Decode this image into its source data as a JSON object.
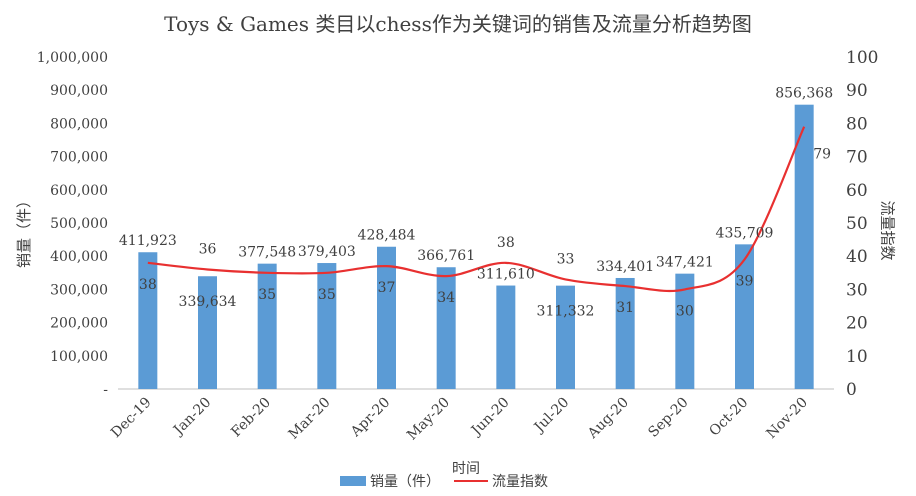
{
  "chart_data": {
    "type": "bar",
    "title": "Toys & Games 类目以chess作为关键词的销售及流量分析趋势图",
    "xlabel": "时间",
    "ylabel": "销量（件）",
    "y2label": "流量指数",
    "categories": [
      "Dec-19",
      "Jan-20",
      "Feb-20",
      "Mar-20",
      "Apr-20",
      "May-20",
      "Jun-20",
      "Jul-20",
      "Aug-20",
      "Sep-20",
      "Oct-20",
      "Nov-20"
    ],
    "series": [
      {
        "name": "销量（件）",
        "type": "bar",
        "axis": "left",
        "color": "#5B9BD5",
        "values": [
          411923,
          339634,
          377548,
          379403,
          428484,
          366761,
          311610,
          311332,
          334401,
          347421,
          435709,
          856368
        ],
        "labels": [
          "411,923",
          "339,634",
          "377,548",
          "379,403",
          "428,484",
          "366,761",
          "311,610",
          "311,332",
          "334,401",
          "347,421",
          "435,709",
          "856,368"
        ]
      },
      {
        "name": "流量指数",
        "type": "line",
        "smooth": true,
        "axis": "right",
        "color": "#E83030",
        "values": [
          38,
          36,
          35,
          35,
          37,
          34,
          38,
          33,
          31,
          30,
          39,
          79
        ],
        "labels": [
          "38",
          "36",
          "35",
          "35",
          "37",
          "34",
          "38",
          "33",
          "31",
          "30",
          "39",
          "79"
        ]
      }
    ],
    "ylim": [
      0,
      1000000
    ],
    "y2lim": [
      0,
      100
    ],
    "yticks": [
      "-",
      "100,000",
      "200,000",
      "300,000",
      "400,000",
      "500,000",
      "600,000",
      "700,000",
      "800,000",
      "900,000",
      "1,000,000"
    ],
    "y2ticks": [
      "0",
      "10",
      "20",
      "30",
      "40",
      "50",
      "60",
      "70",
      "80",
      "90",
      "100"
    ],
    "grid": false,
    "legend": "bottom"
  }
}
